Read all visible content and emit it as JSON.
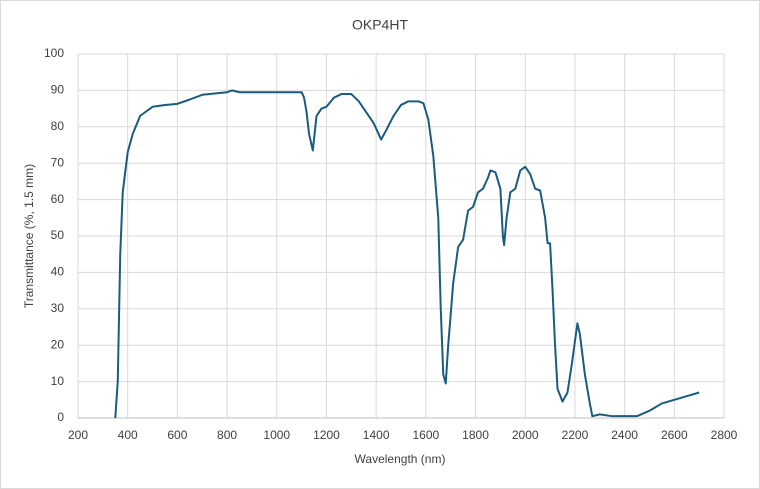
{
  "chart_data": {
    "type": "line",
    "title": "OKP4HT",
    "x_label": "Wavelength (nm)",
    "y_label": "Transmittance (%, 1.5 mm)",
    "x": [
      350,
      360,
      370,
      380,
      400,
      420,
      450,
      500,
      550,
      600,
      650,
      700,
      800,
      820,
      850,
      900,
      1000,
      1050,
      1100,
      1110,
      1120,
      1130,
      1145,
      1160,
      1180,
      1200,
      1230,
      1260,
      1300,
      1330,
      1360,
      1390,
      1420,
      1440,
      1470,
      1500,
      1530,
      1570,
      1590,
      1610,
      1630,
      1650,
      1660,
      1670,
      1680,
      1690,
      1710,
      1730,
      1750,
      1770,
      1790,
      1810,
      1830,
      1850,
      1860,
      1880,
      1900,
      1910,
      1915,
      1925,
      1940,
      1960,
      1980,
      2000,
      2020,
      2040,
      2060,
      2080,
      2090,
      2100,
      2110,
      2120,
      2130,
      2150,
      2170,
      2190,
      2210,
      2220,
      2240,
      2260,
      2270,
      2300,
      2350,
      2400,
      2450,
      2500,
      2550,
      2600,
      2650,
      2700
    ],
    "series": [
      {
        "name": "OKP4HT",
        "color": "#1a5c80",
        "values": [
          0,
          10,
          45,
          62,
          73,
          78,
          83,
          85.5,
          86,
          86.3,
          87.5,
          88.8,
          89.5,
          90,
          89.5,
          89.5,
          89.5,
          89.5,
          89.5,
          88,
          84,
          78,
          73.5,
          83,
          85,
          85.5,
          88,
          89,
          89,
          87,
          84,
          81,
          76.5,
          79,
          83,
          86,
          87,
          87,
          86.5,
          82,
          72,
          55,
          30,
          12,
          9.5,
          20,
          37,
          47,
          49,
          57,
          58,
          62,
          63,
          66,
          68,
          67.5,
          63,
          50,
          47.5,
          55,
          62,
          63,
          68,
          69,
          67,
          63,
          62.5,
          55,
          48,
          48,
          35,
          20,
          8,
          4.5,
          7,
          16,
          26,
          23,
          12,
          4,
          0.5,
          1,
          0.5,
          0.5,
          0.5,
          2,
          4,
          5,
          6,
          7
        ]
      }
    ],
    "xlim": [
      200,
      2800
    ],
    "xticks": [
      200,
      400,
      600,
      800,
      1000,
      1200,
      1400,
      1600,
      1800,
      2000,
      2200,
      2400,
      2600,
      2800
    ],
    "ylim": [
      0,
      100
    ],
    "yticks": [
      0,
      10,
      20,
      30,
      40,
      50,
      60,
      70,
      80,
      90,
      100
    ],
    "grid": true
  }
}
